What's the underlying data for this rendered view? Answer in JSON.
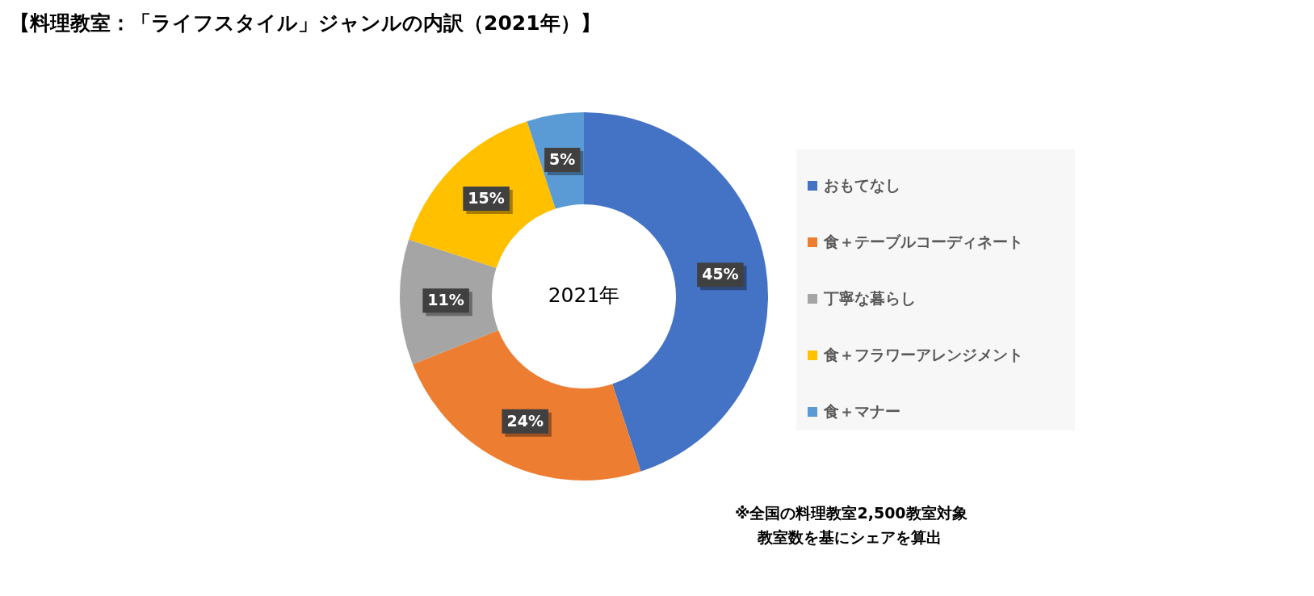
{
  "chart_data": {
    "type": "donut",
    "title": "【料理教室：「ライフスタイル」ジャンルの内訳（2021年）】",
    "categories": [
      "おもてなし",
      "食＋テーブルコーディネート",
      "丁寧な暮らし",
      "食＋フラワーアレンジメント",
      "食＋マナー"
    ],
    "values": [
      45,
      24,
      11,
      15,
      5
    ],
    "colors": [
      "#4472c4",
      "#ed7d31",
      "#a5a5a5",
      "#ffc000",
      "#5b9bd5"
    ],
    "value_labels": [
      "45%",
      "24%",
      "11%",
      "15%",
      "5%"
    ],
    "legend": "right",
    "annotations": [
      "2021年",
      "※全国の料理教室2,500教室対象",
      "教室数を基にシェアを算出"
    ]
  }
}
